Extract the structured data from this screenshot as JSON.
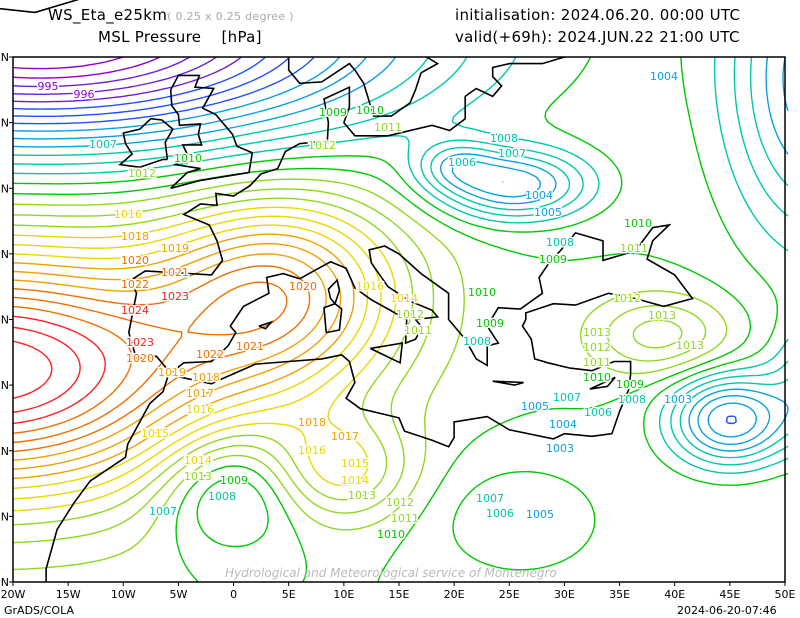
{
  "header": {
    "model": "WS_Eta_e25km",
    "resolution": "( 0.25 x 0.25 degree )",
    "field": "MSL Pressure",
    "units": "[hPa]",
    "init": "initialisation: 2024.06.20.  00:00 UTC",
    "valid": "valid(+69h): 2024.JUN.22 21:00 UTC"
  },
  "axes": {
    "x_ticks": [
      "20W",
      "15W",
      "10W",
      "5W",
      "0",
      "5E",
      "10E",
      "15E",
      "20E",
      "25E",
      "30E",
      "35E",
      "40E",
      "45E",
      "50E"
    ],
    "y_ticks": [
      "N",
      "N",
      "N",
      "N",
      "N",
      "N",
      "N",
      "N",
      "N"
    ]
  },
  "watermark": "Hydrological and Meteorological service of Montenegro",
  "footer": {
    "left": "GrADS/COLA",
    "right": "2024-06-20-07:46"
  },
  "contour_labels": [
    "995",
    "996",
    "1007",
    "1010",
    "1012",
    "1016",
    "1018",
    "1019",
    "1020",
    "1021",
    "1022",
    "1023",
    "1024",
    "1020",
    "1023",
    "1020",
    "1022",
    "1021",
    "1019",
    "1018",
    "1017",
    "1016",
    "1015",
    "1014",
    "1013",
    "1009",
    "1008",
    "1007",
    "1016",
    "1014",
    "1012",
    "1011",
    "1010",
    "1009",
    "1011",
    "1012",
    "1004",
    "1005",
    "1006",
    "1008",
    "1009",
    "1010",
    "1009",
    "1008",
    "1010",
    "1011",
    "1012",
    "1013",
    "1013",
    "1012",
    "1011",
    "1013",
    "1004",
    "1003",
    "1007",
    "1006",
    "1005",
    "1004",
    "1003",
    "1010",
    "1009",
    "1008",
    "1007",
    "1006",
    "1005",
    "1010",
    "1011",
    "1012",
    "1013",
    "1014",
    "1015",
    "1016",
    "1017",
    "1018",
    "1008",
    "1007"
  ],
  "colors": {
    "coast": "#000000",
    "low": "#8a00d4",
    "high": "#e0008a"
  }
}
